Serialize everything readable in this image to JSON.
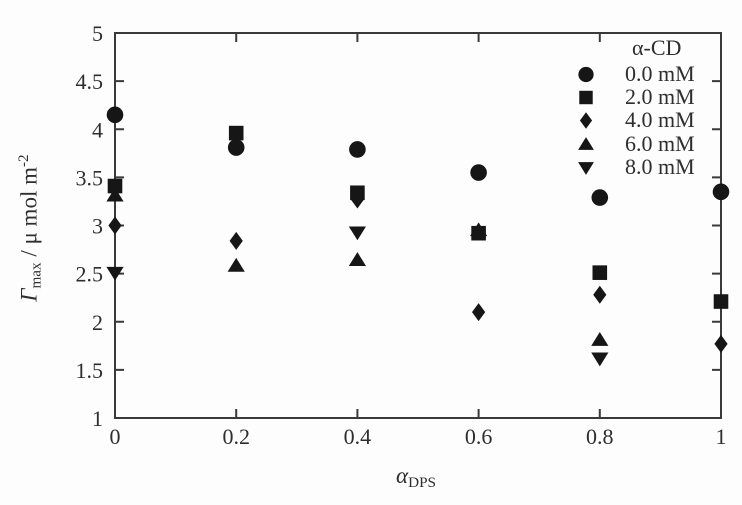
{
  "figure": {
    "background": "#fdfdfd",
    "frame_color": "#3a3a3a",
    "marker_color": "#161616",
    "text_color": "#2e2e2e"
  },
  "labels": {
    "y": {
      "symbol": "Γ",
      "symbol_sub": "max",
      "divider": " / μ mol m",
      "exponent": "-2"
    },
    "x": {
      "symbol": "α",
      "sub": "DPS"
    }
  },
  "legend": {
    "title": "α-CD",
    "position": "top-right-inside"
  },
  "chart_data": {
    "type": "scatter",
    "title": "",
    "xlabel": "α_DPS",
    "ylabel": "Γ_max / μ mol m^-2",
    "xlim": [
      0,
      1
    ],
    "ylim": [
      1,
      5
    ],
    "grid": false,
    "x_tick_values": [
      0,
      0.2,
      0.4,
      0.6,
      0.8,
      1
    ],
    "x_tick_labels": [
      "0",
      "0.2",
      "0.4",
      "0.6",
      "0.8",
      "1"
    ],
    "y_tick_values": [
      1,
      1.5,
      2,
      2.5,
      3,
      3.5,
      4,
      4.5,
      5
    ],
    "y_tick_labels": [
      "1",
      "1.5",
      "2",
      "2.5",
      "3",
      "3.5",
      "4",
      "4.5",
      "5"
    ],
    "legend_title": "α-CD",
    "series": [
      {
        "name": "0.0 mM",
        "marker": "circle",
        "points": [
          [
            0,
            4.15
          ],
          [
            0.2,
            3.81
          ],
          [
            0.4,
            3.79
          ],
          [
            0.6,
            3.55
          ],
          [
            0.8,
            3.29
          ],
          [
            1,
            3.35
          ]
        ]
      },
      {
        "name": "2.0 mM",
        "marker": "square",
        "points": [
          [
            0,
            3.41
          ],
          [
            0.2,
            3.96
          ],
          [
            0.4,
            3.34
          ],
          [
            0.6,
            2.92
          ],
          [
            0.8,
            2.51
          ],
          [
            1,
            2.21
          ]
        ]
      },
      {
        "name": "4.0 mM",
        "marker": "diamond",
        "points": [
          [
            0,
            3.0
          ],
          [
            0.2,
            2.84
          ],
          [
            0.4,
            3.27
          ],
          [
            0.6,
            2.1
          ],
          [
            0.8,
            2.28
          ],
          [
            1,
            1.77
          ]
        ]
      },
      {
        "name": "6.0 mM",
        "marker": "triangle-up",
        "points": [
          [
            0,
            3.31
          ],
          [
            0.2,
            2.58
          ],
          [
            0.4,
            2.64
          ],
          [
            0.6,
            2.95
          ],
          [
            0.8,
            1.81
          ]
        ]
      },
      {
        "name": "8.0 mM",
        "marker": "triangle-down",
        "points": [
          [
            0,
            2.51
          ],
          [
            0.4,
            2.93
          ],
          [
            0.8,
            1.62
          ]
        ]
      }
    ]
  }
}
